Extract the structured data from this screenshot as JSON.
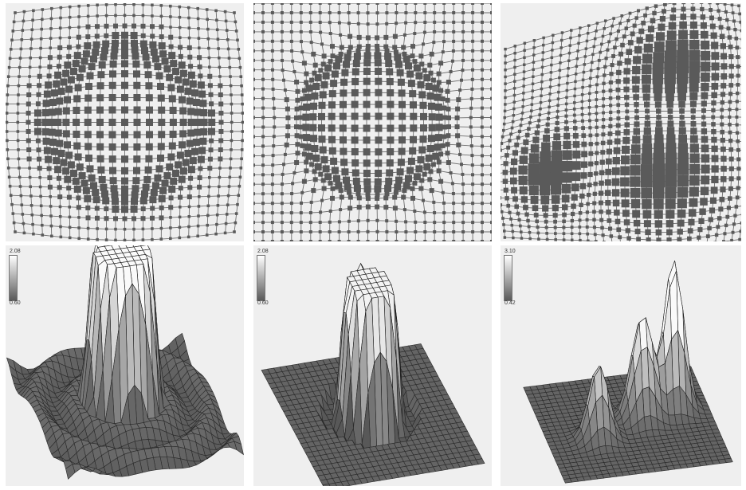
{
  "figure": {
    "top_row": [
      {
        "name": "grid-panel-1",
        "deformation": "radial-expand"
      },
      {
        "name": "grid-panel-2",
        "deformation": "circular-shell"
      },
      {
        "name": "grid-panel-3",
        "deformation": "three-lobes"
      }
    ],
    "bottom_row": [
      {
        "name": "surface-panel-1",
        "colorbar": {
          "max": "2.08",
          "min": "0.60"
        }
      },
      {
        "name": "surface-panel-2",
        "colorbar": {
          "max": "2.08",
          "min": "0.60"
        }
      },
      {
        "name": "surface-panel-3",
        "colorbar": {
          "max": "3.10",
          "min": "0.42"
        }
      }
    ]
  },
  "colors": {
    "panel_bg": "#efefef",
    "grid_line": "#6e6e6e",
    "grid_square": "#5a5a5a",
    "mesh_line": "#1a1a1a",
    "flat_mesh": "#6a6a6a"
  }
}
